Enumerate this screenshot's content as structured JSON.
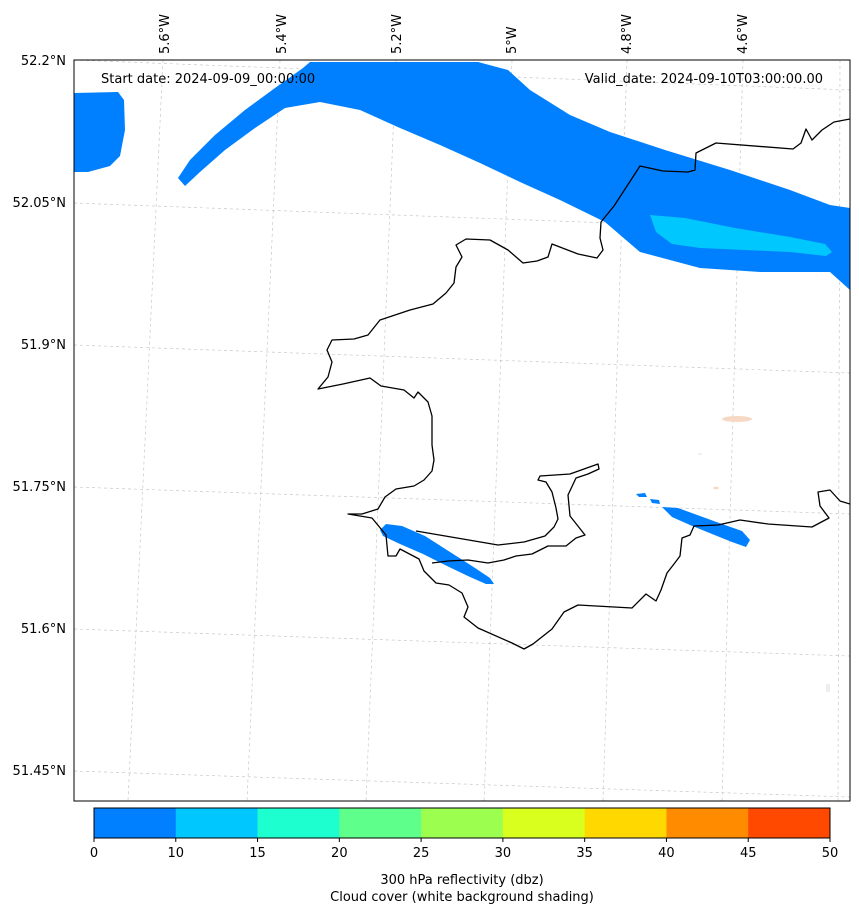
{
  "map": {
    "start_date": "Start date: 2024-09-09_00:00:00",
    "valid_date": "Valid_date: 2024-09-10T03:00:00.00",
    "lon_labels": [
      "5.6°W",
      "5.4°W",
      "5.2°W",
      "5°W",
      "4.8°W",
      "4.6°W"
    ],
    "lat_labels": [
      "52.2°N",
      "52.05°N",
      "51.9°N",
      "51.75°N",
      "51.6°N",
      "51.45°N"
    ]
  },
  "colorbar": {
    "ticks": [
      "0",
      "10",
      "15",
      "20",
      "25",
      "30",
      "35",
      "40",
      "45",
      "50"
    ],
    "colors": [
      "#0080ff",
      "#00c8ff",
      "#1effd0",
      "#5fff8c",
      "#9cff50",
      "#d8ff1e",
      "#ffd800",
      "#ff8c00",
      "#ff4800"
    ],
    "label_line1": "300 hPa reflectivity (dbz)",
    "label_line2": "Cloud cover (white background shading)"
  },
  "chart_data": {
    "type": "map",
    "variable": "300 hPa reflectivity (dbz)",
    "overlay": "Cloud cover (white background shading)",
    "colorbar_levels": [
      0,
      10,
      15,
      20,
      25,
      30,
      35,
      40,
      45,
      50
    ],
    "lon_ticks": [
      -5.6,
      -5.4,
      -5.2,
      -5.0,
      -4.8,
      -4.6
    ],
    "lat_ticks": [
      52.2,
      52.05,
      51.9,
      51.75,
      51.6,
      51.45
    ]
  }
}
